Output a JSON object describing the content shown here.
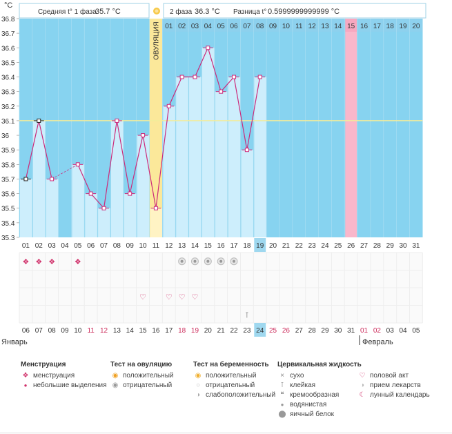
{
  "chart_data": {
    "type": "line",
    "title": "",
    "ylabel": "°C",
    "ylim": [
      35.3,
      36.8
    ],
    "yticks": [
      "36.8",
      "36.7",
      "36.6",
      "36.5",
      "36.4",
      "36.3",
      "36.2",
      "36.1",
      "36",
      "35.9",
      "35.8",
      "35.7",
      "35.6",
      "35.5",
      "35.4",
      "35.3"
    ],
    "header": {
      "phase1_label": "Средняя t° 1 фаза",
      "phase1_value": "35.7 °C",
      "phase2_label": "2 фаза",
      "phase2_value": "36.3 °C",
      "diff_label": "Разница t°",
      "diff_value": "0.5999999999999 °C"
    },
    "ovulation_label": "ОВУЛЯЦИЯ",
    "coverline": 36.1,
    "cycle_days": [
      "01",
      "02",
      "03",
      "04",
      "05",
      "06",
      "07",
      "08",
      "09",
      "10",
      "11",
      "12",
      "13",
      "14",
      "15",
      "16",
      "17",
      "18",
      "19",
      "20",
      "21",
      "22",
      "23",
      "24",
      "25",
      "26",
      "27",
      "28",
      "29",
      "30",
      "31"
    ],
    "top_day_labels": [
      "01",
      "02",
      "03",
      "04",
      "05",
      "06",
      "07",
      "08",
      "09",
      "10",
      "11",
      "12",
      "13",
      "14",
      "15",
      "16",
      "17",
      "18",
      "19",
      "20"
    ],
    "top_day_start_index": 11,
    "highlight_cycle_day": "19",
    "highlight_top_day": "15",
    "dates": [
      "06",
      "07",
      "08",
      "09",
      "10",
      "11",
      "12",
      "13",
      "14",
      "15",
      "16",
      "17",
      "18",
      "19",
      "20",
      "21",
      "22",
      "23",
      "24",
      "25",
      "26",
      "27",
      "28",
      "29",
      "30",
      "31",
      "01",
      "02",
      "03",
      "04",
      "05"
    ],
    "date_red": [
      "11",
      "12",
      "18",
      "19",
      "25",
      "26",
      "01",
      "02"
    ],
    "highlight_date": "24",
    "month_left": "Январь",
    "month_right": "Февраль",
    "temps": [
      35.7,
      36.1,
      35.7,
      null,
      35.8,
      35.6,
      35.5,
      36.1,
      35.6,
      36.0,
      35.5,
      36.2,
      36.4,
      36.4,
      36.6,
      36.3,
      36.4,
      35.9,
      36.4,
      null,
      null,
      null,
      null,
      null,
      null,
      null,
      null,
      null,
      null,
      null,
      null
    ],
    "ovulation_day_index": 10,
    "highlight_bar_index": 25,
    "menstruation_days": [
      "01",
      "02",
      "03",
      "05"
    ],
    "ovulation_test_negative_days": [
      "13",
      "14",
      "15",
      "16",
      "17"
    ],
    "intercourse_days": [
      "10",
      "12",
      "13",
      "14"
    ],
    "cervical_mucus_days": [
      "18"
    ]
  },
  "legend": {
    "menstruation": {
      "title": "Менструация",
      "items": [
        "менструация",
        "небольшие выделения"
      ]
    },
    "ovulation_test": {
      "title": "Тест на овуляцию",
      "items": [
        "положительный",
        "отрицательный"
      ]
    },
    "pregnancy_test": {
      "title": "Тест на беременность",
      "items": [
        "положительный",
        "отрицательный",
        "слабоположительный"
      ]
    },
    "cervical": {
      "title": "Цервикальная жидкость",
      "items": [
        "сухо",
        "клейкая",
        "кремообразная",
        "водянистая",
        "яичный белок"
      ]
    },
    "other": {
      "items": [
        "половой акт",
        "прием лекарств",
        "лунный календарь"
      ]
    }
  },
  "colors": {
    "background_blue": "#87d3f0",
    "bar": "#cdeefc",
    "line": "#cc2a7a",
    "ovulation": "#fbe89a",
    "highlight_pink": "#f9b7cb",
    "coverline": "#f3ec9a",
    "day_highlight": "#9fd8ef",
    "red_date": "#cc2a5a"
  }
}
